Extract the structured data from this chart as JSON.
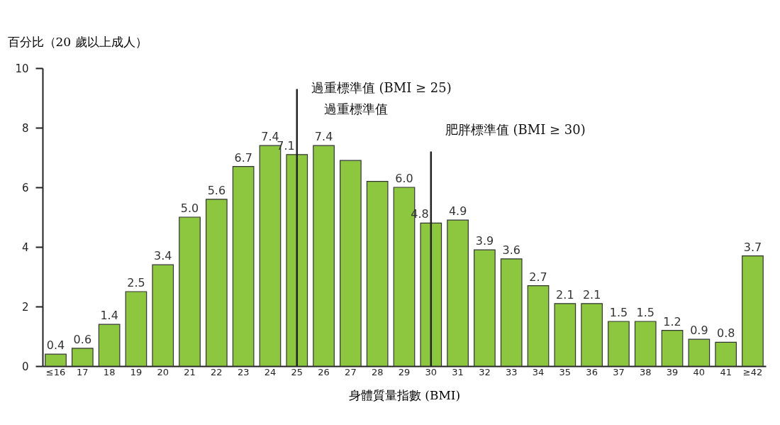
{
  "chart_data": {
    "type": "bar",
    "xlabel": "身體質量指數 (BMI)",
    "ylabel": "百分比（20 歲以上成人）",
    "categories": [
      "≤16",
      "17",
      "18",
      "19",
      "20",
      "21",
      "22",
      "23",
      "24",
      "25",
      "26",
      "27",
      "28",
      "29",
      "30",
      "31",
      "32",
      "33",
      "34",
      "35",
      "36",
      "37",
      "38",
      "39",
      "40",
      "41",
      "≥42"
    ],
    "values": [
      0.4,
      0.6,
      1.4,
      2.5,
      3.4,
      5.0,
      5.6,
      6.7,
      7.4,
      7.1,
      7.4,
      6.9,
      6.2,
      6.0,
      4.8,
      4.9,
      3.9,
      3.6,
      2.7,
      2.1,
      2.1,
      1.5,
      1.5,
      1.2,
      0.9,
      0.8,
      3.7
    ],
    "value_labels": [
      "0.4",
      "0.6",
      "1.4",
      "2.5",
      "3.4",
      "5.0",
      "5.6",
      "6.7",
      "7.4",
      "7.1",
      "7.4",
      null,
      null,
      "6.0",
      "4.8",
      "4.9",
      "3.9",
      "3.6",
      "2.7",
      "2.1",
      "2.1",
      "1.5",
      "1.5",
      "1.2",
      "0.9",
      "0.8",
      "3.7"
    ],
    "color": "#8dc63f",
    "ylim": [
      0,
      10
    ],
    "yticks": [
      0,
      2,
      4,
      6,
      8,
      10
    ],
    "grid": false,
    "ref_lines": [
      {
        "axis": "x",
        "value": "25",
        "label": "過重標準值 (BMI ≥ 25)"
      },
      {
        "axis": "x",
        "value": "30",
        "label": "肥胖標準值 (BMI ≥ 30)"
      }
    ],
    "annotations": [
      "過重標準值"
    ]
  }
}
